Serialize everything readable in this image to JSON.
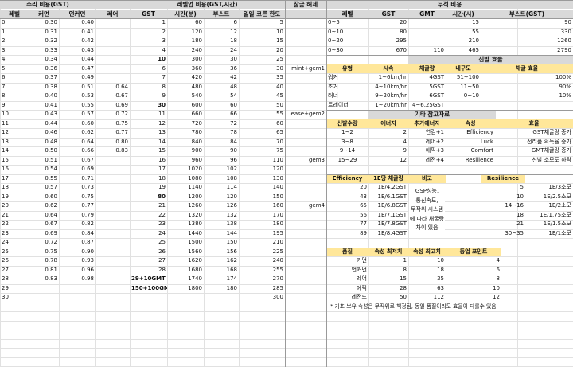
{
  "section_headers": {
    "repair": "수리 비용(GST)",
    "levelup": "레벨업 비용(GST,시간)",
    "unlock": "잠금 해제",
    "cumulative": "누적 비용"
  },
  "left_headers": [
    "레벨",
    "커먼",
    "언커먼",
    "레어",
    "GST",
    "시간(분)",
    "부스트",
    "일일 코른 한도"
  ],
  "levels": [
    {
      "lv": "0",
      "common": "0.30",
      "uncommon": "0.40",
      "rare": "",
      "gst": "1",
      "time": "60",
      "boost": "6",
      "daily": "5",
      "unlock": ""
    },
    {
      "lv": "1",
      "common": "0.31",
      "uncommon": "0.41",
      "rare": "",
      "gst": "2",
      "time": "120",
      "boost": "12",
      "daily": "10",
      "unlock": ""
    },
    {
      "lv": "2",
      "common": "0.32",
      "uncommon": "0.42",
      "rare": "",
      "gst": "3",
      "time": "180",
      "boost": "18",
      "daily": "15",
      "unlock": ""
    },
    {
      "lv": "3",
      "common": "0.33",
      "uncommon": "0.43",
      "rare": "",
      "gst": "4",
      "time": "240",
      "boost": "24",
      "daily": "20",
      "unlock": ""
    },
    {
      "lv": "4",
      "common": "0.34",
      "uncommon": "0.44",
      "rare": "",
      "gst": "10",
      "time": "300",
      "boost": "30",
      "daily": "25",
      "unlock": ""
    },
    {
      "lv": "5",
      "common": "0.36",
      "uncommon": "0.47",
      "rare": "",
      "gst": "6",
      "time": "360",
      "boost": "36",
      "daily": "30",
      "unlock": "mint+gem1"
    },
    {
      "lv": "6",
      "common": "0.37",
      "uncommon": "0.49",
      "rare": "",
      "gst": "7",
      "time": "420",
      "boost": "42",
      "daily": "35",
      "unlock": ""
    },
    {
      "lv": "7",
      "common": "0.38",
      "uncommon": "0.51",
      "rare": "0.64",
      "gst": "8",
      "time": "480",
      "boost": "48",
      "daily": "40",
      "unlock": ""
    },
    {
      "lv": "8",
      "common": "0.40",
      "uncommon": "0.53",
      "rare": "0.67",
      "gst": "9",
      "time": "540",
      "boost": "54",
      "daily": "45",
      "unlock": ""
    },
    {
      "lv": "9",
      "common": "0.41",
      "uncommon": "0.55",
      "rare": "0.69",
      "gst": "30",
      "time": "600",
      "boost": "60",
      "daily": "50",
      "unlock": ""
    },
    {
      "lv": "10",
      "common": "0.43",
      "uncommon": "0.57",
      "rare": "0.72",
      "gst": "11",
      "time": "660",
      "boost": "66",
      "daily": "55",
      "unlock": "lease+gem2"
    },
    {
      "lv": "11",
      "common": "0.44",
      "uncommon": "0.60",
      "rare": "0.75",
      "gst": "12",
      "time": "720",
      "boost": "72",
      "daily": "60",
      "unlock": ""
    },
    {
      "lv": "12",
      "common": "0.46",
      "uncommon": "0.62",
      "rare": "0.77",
      "gst": "13",
      "time": "780",
      "boost": "78",
      "daily": "65",
      "unlock": ""
    },
    {
      "lv": "13",
      "common": "0.48",
      "uncommon": "0.64",
      "rare": "0.80",
      "gst": "14",
      "time": "840",
      "boost": "84",
      "daily": "70",
      "unlock": ""
    },
    {
      "lv": "14",
      "common": "0.50",
      "uncommon": "0.66",
      "rare": "0.83",
      "gst": "15",
      "time": "900",
      "boost": "90",
      "daily": "75",
      "unlock": ""
    },
    {
      "lv": "15",
      "common": "0.51",
      "uncommon": "0.67",
      "rare": "",
      "gst": "16",
      "time": "960",
      "boost": "96",
      "daily": "110",
      "unlock": "gem3"
    },
    {
      "lv": "16",
      "common": "0.54",
      "uncommon": "0.69",
      "rare": "",
      "gst": "17",
      "time": "1020",
      "boost": "102",
      "daily": "120",
      "unlock": ""
    },
    {
      "lv": "17",
      "common": "0.55",
      "uncommon": "0.71",
      "rare": "",
      "gst": "18",
      "time": "1080",
      "boost": "108",
      "daily": "130",
      "unlock": ""
    },
    {
      "lv": "18",
      "common": "0.57",
      "uncommon": "0.73",
      "rare": "",
      "gst": "19",
      "time": "1140",
      "boost": "114",
      "daily": "140",
      "unlock": ""
    },
    {
      "lv": "19",
      "common": "0.60",
      "uncommon": "0.75",
      "rare": "",
      "gst": "80",
      "time": "1200",
      "boost": "120",
      "daily": "150",
      "unlock": ""
    },
    {
      "lv": "20",
      "common": "0.62",
      "uncommon": "0.77",
      "rare": "",
      "gst": "21",
      "time": "1260",
      "boost": "126",
      "daily": "160",
      "unlock": "gem4"
    },
    {
      "lv": "21",
      "common": "0.64",
      "uncommon": "0.79",
      "rare": "",
      "gst": "22",
      "time": "1320",
      "boost": "132",
      "daily": "170",
      "unlock": ""
    },
    {
      "lv": "22",
      "common": "0.67",
      "uncommon": "0.82",
      "rare": "",
      "gst": "23",
      "time": "1380",
      "boost": "138",
      "daily": "180",
      "unlock": ""
    },
    {
      "lv": "23",
      "common": "0.69",
      "uncommon": "0.84",
      "rare": "",
      "gst": "24",
      "time": "1440",
      "boost": "144",
      "daily": "195",
      "unlock": ""
    },
    {
      "lv": "24",
      "common": "0.72",
      "uncommon": "0.87",
      "rare": "",
      "gst": "25",
      "time": "1500",
      "boost": "150",
      "daily": "210",
      "unlock": ""
    },
    {
      "lv": "25",
      "common": "0.75",
      "uncommon": "0.90",
      "rare": "",
      "gst": "26",
      "time": "1560",
      "boost": "156",
      "daily": "225",
      "unlock": ""
    },
    {
      "lv": "26",
      "common": "0.78",
      "uncommon": "0.93",
      "rare": "",
      "gst": "27",
      "time": "1620",
      "boost": "162",
      "daily": "240",
      "unlock": ""
    },
    {
      "lv": "27",
      "common": "0.81",
      "uncommon": "0.96",
      "rare": "",
      "gst": "28",
      "time": "1680",
      "boost": "168",
      "daily": "255",
      "unlock": ""
    },
    {
      "lv": "28",
      "common": "0.83",
      "uncommon": "0.98",
      "rare": "",
      "gst": "29+10GMT",
      "time": "1740",
      "boost": "174",
      "daily": "270",
      "unlock": ""
    },
    {
      "lv": "29",
      "common": "",
      "uncommon": "",
      "rare": "",
      "gst": "150+100GMT",
      "time": "1800",
      "boost": "180",
      "daily": "285",
      "unlock": ""
    },
    {
      "lv": "30",
      "common": "",
      "uncommon": "",
      "rare": "",
      "gst": "",
      "time": "",
      "boost": "",
      "daily": "300",
      "unlock": ""
    }
  ],
  "cumulative": {
    "headers": [
      "레벨",
      "GST",
      "GMT",
      "시간(시)",
      "부스트(GST)"
    ],
    "rows": [
      [
        "0~5",
        "20",
        "",
        "15",
        "90"
      ],
      [
        "0~10",
        "80",
        "",
        "55",
        "330"
      ],
      [
        "0~20",
        "295",
        "",
        "210",
        "1260"
      ],
      [
        "0~30",
        "670",
        "110",
        "465",
        "2790"
      ]
    ]
  },
  "sneaker_efficiency": {
    "title": "신발 효율",
    "headers": [
      "유형",
      "시속",
      "채굴량",
      "내구도",
      "채굴 효율"
    ],
    "rows": [
      [
        "워커",
        "1~6km/hr",
        "4GST",
        "51~100",
        "100%"
      ],
      [
        "조거",
        "4~10km/hr",
        "5GST",
        "11~50",
        "90%"
      ],
      [
        "러너",
        "9~20km/hr",
        "6GST",
        "0~10",
        "10%"
      ],
      [
        "트레이너",
        "1~20km/hr",
        "4~6.25GST",
        "",
        ""
      ]
    ]
  },
  "other_reference": {
    "title": "기타 참고자료",
    "headers": [
      "신발수량",
      "에너지",
      "추가에너지",
      "속성",
      "효율"
    ],
    "rows": [
      [
        "1~2",
        "2",
        "연컴+1",
        "Efficiency",
        "GST채굴량 증가"
      ],
      [
        "3~8",
        "4",
        "레어+2",
        "Luck",
        "전리품 획득율 증가"
      ],
      [
        "9~14",
        "9",
        "에픽+3",
        "Comfort",
        "GMT채굴량 증가"
      ],
      [
        "15~29",
        "12",
        "레전+4",
        "Resilience",
        "신발 소모도 하락"
      ]
    ]
  },
  "efficiency_table": {
    "headers": [
      "Efficiency",
      "1E당 채굴량",
      "비고"
    ],
    "rows": [
      [
        "20",
        "1E/4.2GST"
      ],
      [
        "43",
        "1E/6.1GST"
      ],
      [
        "65",
        "1E/6.8GST"
      ],
      [
        "56",
        "1E/7.1GST"
      ],
      [
        "77",
        "1E/7.8GST"
      ],
      [
        "89",
        "1E/8.4GST"
      ]
    ],
    "note_lines": [
      "GSP성능,",
      "통신속도,",
      "무작위 시스템",
      "에 따라 채굴량",
      "차이 있음"
    ]
  },
  "resilience_table": {
    "header": "Resilience",
    "rows": [
      [
        "5",
        "1E/3소모"
      ],
      [
        "10",
        "1E/2.5소모"
      ],
      [
        "14~16",
        "1E/2소모"
      ],
      [
        "18",
        "1E/1.75소모"
      ],
      [
        "21",
        "1E/1.5소모"
      ],
      [
        "30~35",
        "1E/1소모"
      ]
    ]
  },
  "quality_table": {
    "headers": [
      "품질",
      "속성 최저치",
      "속성 최고치",
      "등업 포인트"
    ],
    "rows": [
      [
        "커먼",
        "1",
        "10",
        "4"
      ],
      [
        "언커먼",
        "8",
        "18",
        "6"
      ],
      [
        "레어",
        "15",
        "35",
        "8"
      ],
      [
        "에픽",
        "28",
        "63",
        "10"
      ],
      [
        "레전드",
        "50",
        "112",
        "12"
      ]
    ]
  },
  "footnote": "* 기초 보유 속성은 무작위로 책정됨, 동일 품질이라도 효율이 다를수 있음"
}
